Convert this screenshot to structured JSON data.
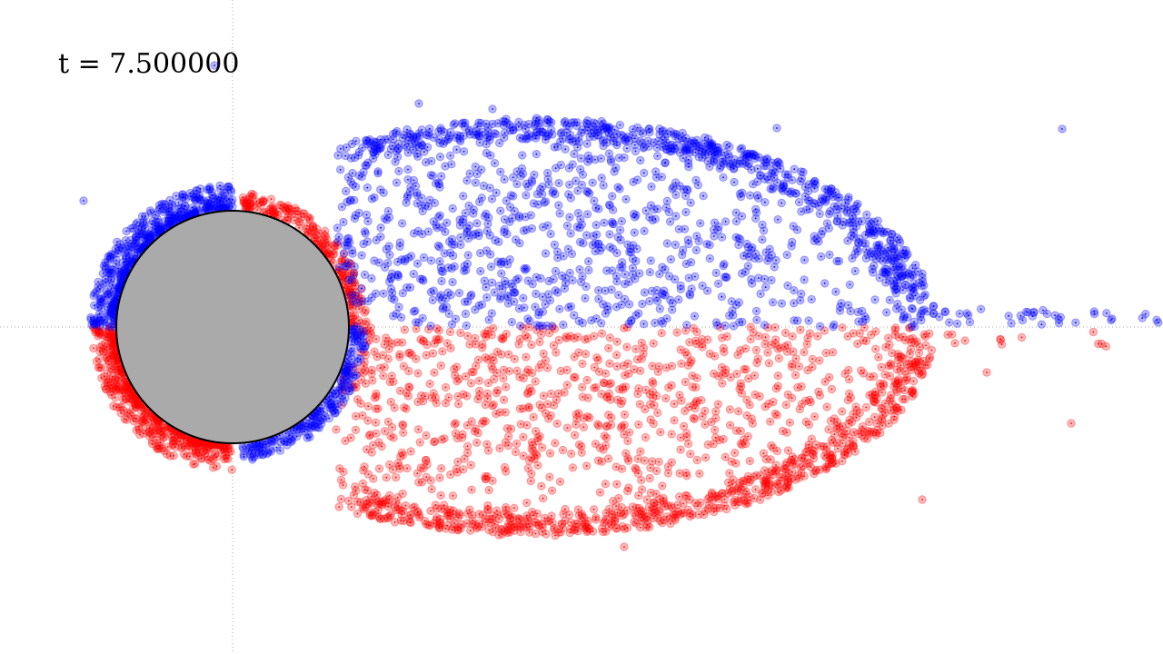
{
  "time_label": "t = 7.500000",
  "colors": {
    "background": "#ffffff",
    "upper_particles": "#0000ff",
    "lower_particles": "#ff0000",
    "obstacle_fill": "#aaaaaa",
    "obstacle_stroke": "#000000",
    "axis_lines": "#aaaaaa"
  },
  "particles": {
    "upper_color_name": "blue",
    "lower_color_name": "red",
    "opacity": 0.28
  },
  "obstacle": {
    "shape": "circle"
  },
  "axes": {
    "style": "dotted",
    "visible": true
  }
}
